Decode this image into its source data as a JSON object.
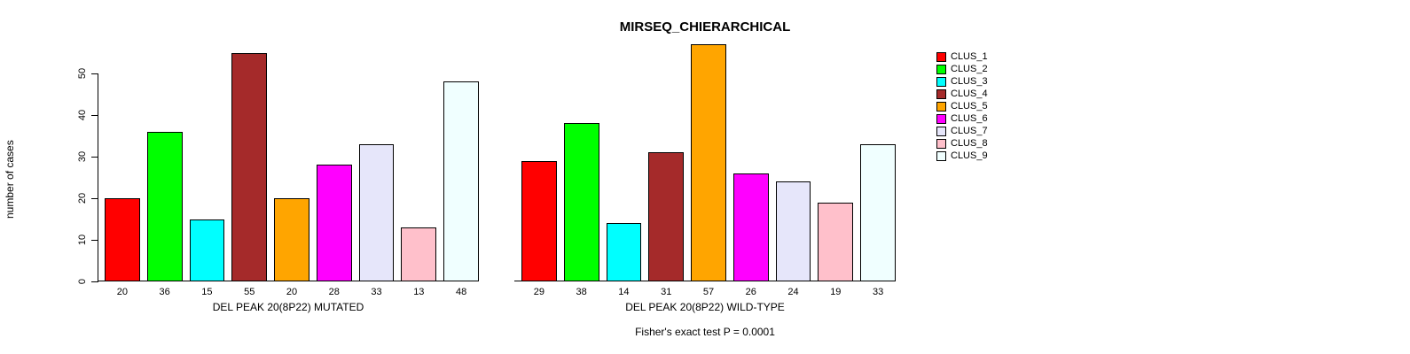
{
  "chart_data": {
    "type": "bar",
    "title": "MIRSEQ_CHIERARCHICAL",
    "ylabel": "number of cases",
    "ylim": [
      0,
      57
    ],
    "yticks": [
      0,
      10,
      20,
      30,
      40,
      50
    ],
    "grid": false,
    "legend_position": "right",
    "clusters": [
      "CLUS_1",
      "CLUS_2",
      "CLUS_3",
      "CLUS_4",
      "CLUS_5",
      "CLUS_6",
      "CLUS_7",
      "CLUS_8",
      "CLUS_9"
    ],
    "colors": [
      "#FF0000",
      "#00FF00",
      "#00FFFF",
      "#A52A2A",
      "#FFA500",
      "#FF00FF",
      "#E6E6FA",
      "#FFC0CB",
      "#F0FFFF"
    ],
    "panels": [
      {
        "xlabel": "DEL PEAK 20(8P22) MUTATED",
        "values": [
          20,
          36,
          15,
          55,
          20,
          28,
          33,
          13,
          48
        ]
      },
      {
        "xlabel": "DEL PEAK 20(8P22) WILD-TYPE",
        "values": [
          29,
          38,
          14,
          31,
          57,
          26,
          24,
          19,
          33
        ]
      }
    ],
    "caption": "Fisher's exact test P = 0.0001"
  }
}
